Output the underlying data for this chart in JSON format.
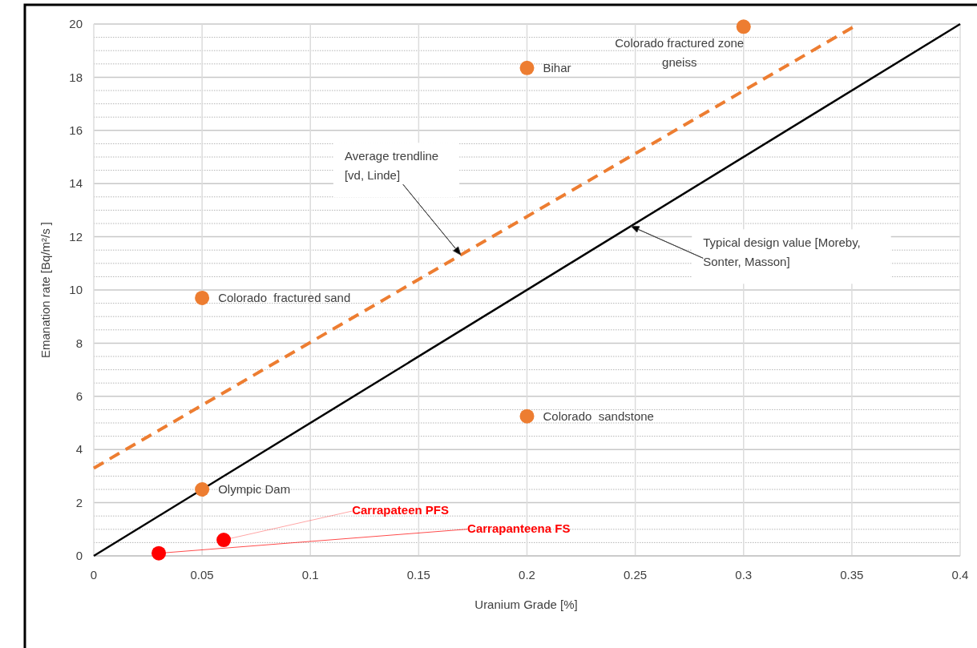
{
  "chart_data": {
    "type": "scatter",
    "xlabel": "Uranium Grade [%]",
    "ylabel": "Emanation rate [Bq/m²/s ]",
    "xlim": [
      0,
      0.4
    ],
    "ylim": [
      0,
      20
    ],
    "xticks": [
      0,
      0.05,
      0.1,
      0.15,
      0.2,
      0.25,
      0.3,
      0.35,
      0.4
    ],
    "yticks": [
      0,
      2,
      4,
      6,
      8,
      10,
      12,
      14,
      16,
      18,
      20
    ],
    "grid": true,
    "marker": "circle",
    "legend": false,
    "series": [
      {
        "type": "line",
        "color": "#ed7d31",
        "line_style": "dashed",
        "marker": "none",
        "x": [
          0,
          0.353
        ],
        "values": [
          3.3,
          20
        ]
      },
      {
        "type": "line",
        "color": "#000000",
        "line_style": "solid",
        "marker": "none",
        "x": [
          0,
          0.4
        ],
        "values": [
          0,
          20
        ]
      },
      {
        "color": "#ed7d31",
        "x": [
          0.3,
          0.2,
          0.05,
          0.2,
          0.05
        ],
        "values": [
          19.9,
          18.35,
          9.7,
          5.25,
          2.5
        ]
      },
      {
        "name": "Carrapateen PFS",
        "color": "#ff0000",
        "x": [
          0.06
        ],
        "values": [
          0.6
        ]
      },
      {
        "name": "Carrapanteena FS",
        "color": "#ff0000",
        "x": [
          0.03
        ],
        "values": [
          0.1
        ]
      }
    ],
    "annotations": [
      {
        "text": "Colorado fractured zone gneiss",
        "x": 0.3,
        "y": 19.9
      },
      {
        "text": "Bihar",
        "x": 0.2,
        "y": 18.35
      },
      {
        "text": "Colorado  fractured sand",
        "x": 0.05,
        "y": 9.7
      },
      {
        "text": "Colorado  sandstone",
        "x": 0.2,
        "y": 5.25
      },
      {
        "text": "Olympic Dam",
        "x": 0.05,
        "y": 2.5
      },
      "Average trendline [vd, Linde]",
      "Typical design value [Moreby, Sonter, Masson]"
    ]
  }
}
